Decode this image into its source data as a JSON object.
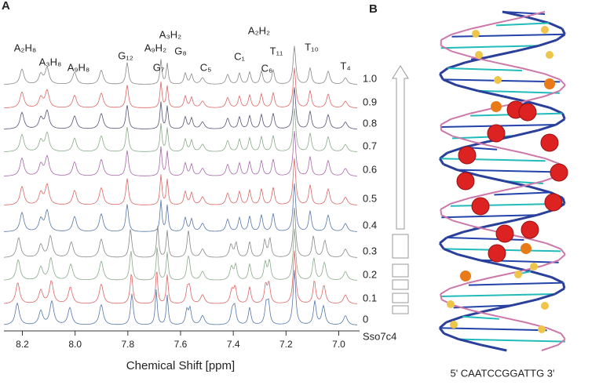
{
  "panel_a": {
    "label": "A",
    "xlabel": "Chemical Shift [ppm]",
    "xlim": [
      8.27,
      6.93
    ],
    "xticks": [
      {
        "value": 8.2,
        "label": "8.2"
      },
      {
        "value": 8.0,
        "label": "8.0"
      },
      {
        "value": 7.8,
        "label": "7.8"
      },
      {
        "value": 7.6,
        "label": "7.6"
      },
      {
        "value": 7.4,
        "label": "7.4"
      },
      {
        "value": 7.2,
        "label": "7.2"
      },
      {
        "value": 7.0,
        "label": "7.0"
      }
    ],
    "peak_labels": [
      "A₂H₈",
      "A₃H₈",
      "A₉H₈",
      "G₁₂",
      "A₉H₂",
      "A₃H₂",
      "G₇",
      "G₈",
      "C₅",
      "C₁",
      "A₂H₂",
      "C₆",
      "T₁₁",
      "T₁₀",
      "T₄"
    ],
    "trace_labels": [
      "1.0",
      "0.9",
      "0.8",
      "0.7",
      "0.6",
      "0.5",
      "0.4",
      "0.3",
      "0.2",
      "0.1",
      "0",
      "Sso7c4"
    ]
  },
  "panel_b": {
    "label": "B",
    "sequence": "5' CAATCCGGATTG 3'"
  }
}
